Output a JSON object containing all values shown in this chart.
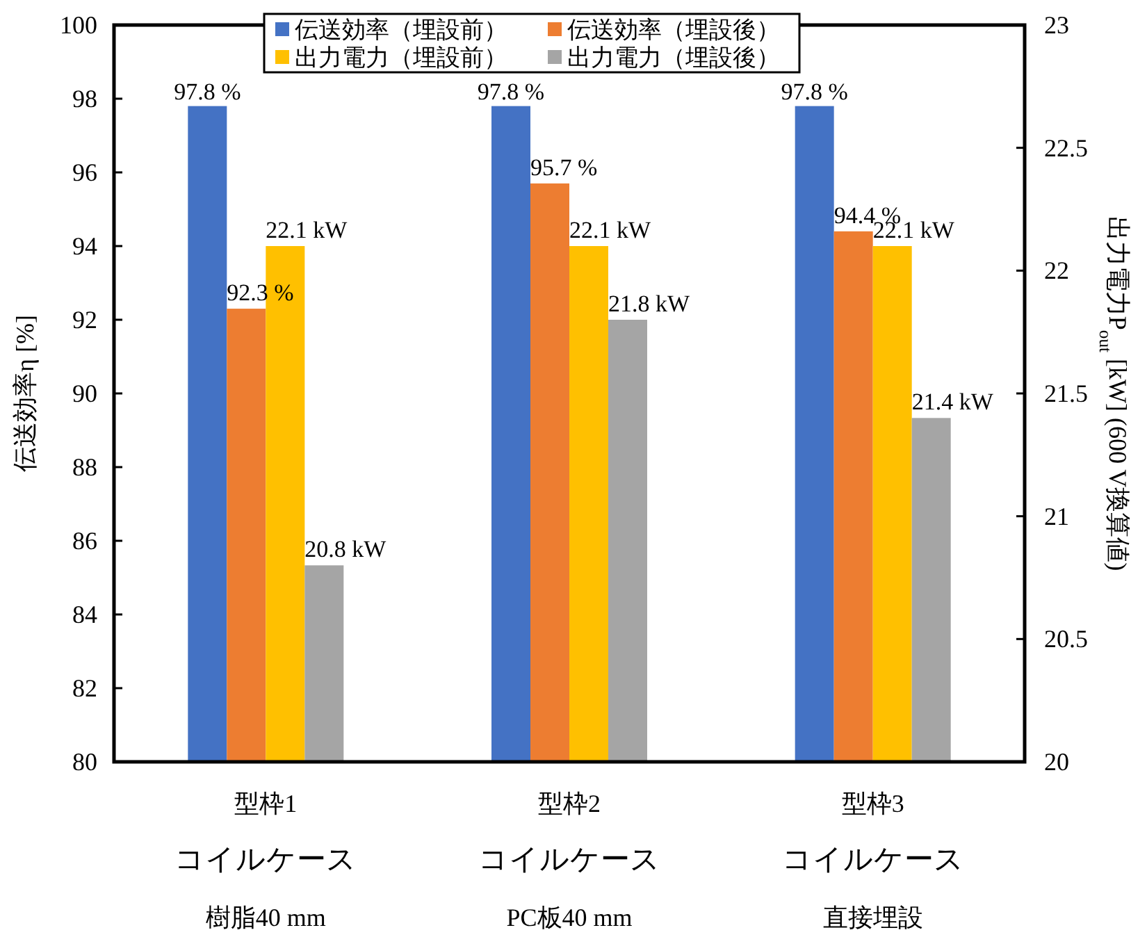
{
  "chart_data": {
    "type": "bar",
    "categories": [
      "型枠1\nコイルケース樹脂40 mm",
      "型枠2\nコイルケースPC板40 mm",
      "型枠3\nコイルケース直接埋設"
    ],
    "ylabel": "伝送効率η [%]",
    "y2label": "出力電力P$_{out}$ [kW] (600 V換算値)",
    "ylim": [
      80,
      100
    ],
    "yticks": [
      80,
      82,
      84,
      86,
      88,
      90,
      92,
      94,
      96,
      98,
      100
    ],
    "y2lim": [
      20,
      23
    ],
    "y2ticks": [
      20,
      20.5,
      21,
      21.5,
      22,
      22.5,
      23
    ],
    "legend": "top",
    "grid": false,
    "series": [
      {
        "name": "伝送効率（埋設前）",
        "color": "#4472c4",
        "values": [
          97.8,
          97.8,
          97.8
        ],
        "value_labels": [
          "97.8 %",
          "97.8 %",
          "97.8 %"
        ]
      },
      {
        "name": "伝送効率（埋設後）",
        "color": "#ed7d31",
        "values": [
          92.3,
          95.7,
          94.4
        ],
        "value_labels": [
          "92.3 %",
          "95.7 %",
          "94.4 %"
        ]
      },
      {
        "name": "出力電力（埋設前）",
        "color": "#ffc000",
        "axis": "y2",
        "values": [
          22.1,
          22.1,
          22.1
        ],
        "value_labels": [
          "22.1 kW",
          "22.1 kW",
          "22.1 kW"
        ]
      },
      {
        "name": "出力電力（埋設後）",
        "color": "#a5a5a5",
        "axis": "y2",
        "values": [
          20.8,
          21.8,
          21.4
        ],
        "value_labels": [
          "20.8 kW",
          "21.8 kW",
          "21.4 kW"
        ]
      }
    ]
  }
}
